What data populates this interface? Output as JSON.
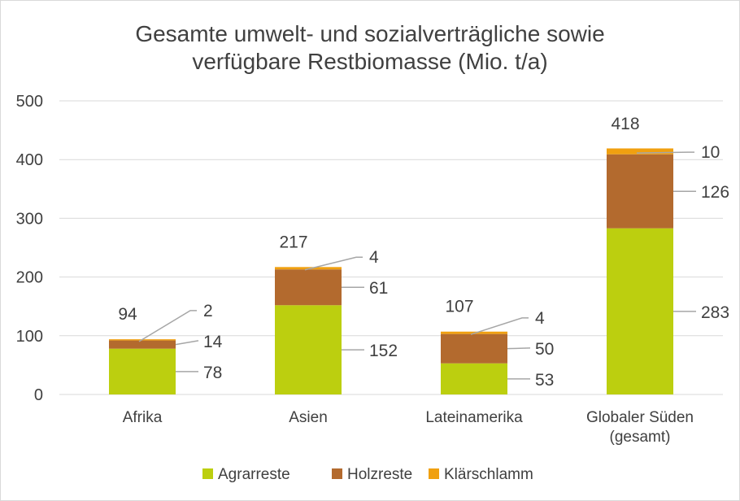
{
  "chart_data": {
    "type": "bar",
    "stacked": true,
    "title_lines": [
      "Gesamte umwelt- und sozialverträgliche sowie",
      "verfügbare Restbiomasse (Mio. t/a)"
    ],
    "categories": [
      [
        "Afrika"
      ],
      [
        "Asien"
      ],
      [
        "Lateinamerika"
      ],
      [
        "Globaler Süden",
        "(gesamt)"
      ]
    ],
    "series": [
      {
        "name": "Agrarreste",
        "color": "#bccf0f",
        "values": [
          78,
          152,
          53,
          283
        ]
      },
      {
        "name": "Holzreste",
        "color": "#b36a2e",
        "values": [
          14,
          61,
          50,
          126
        ]
      },
      {
        "name": "Klärschlamm",
        "color": "#f0a010",
        "values": [
          2,
          4,
          4,
          10
        ]
      }
    ],
    "totals": [
      94,
      217,
      107,
      418
    ],
    "ylim": [
      0,
      500
    ],
    "yticks": [
      0,
      100,
      200,
      300,
      400,
      500
    ],
    "grid": true,
    "legend_position": "bottom"
  }
}
